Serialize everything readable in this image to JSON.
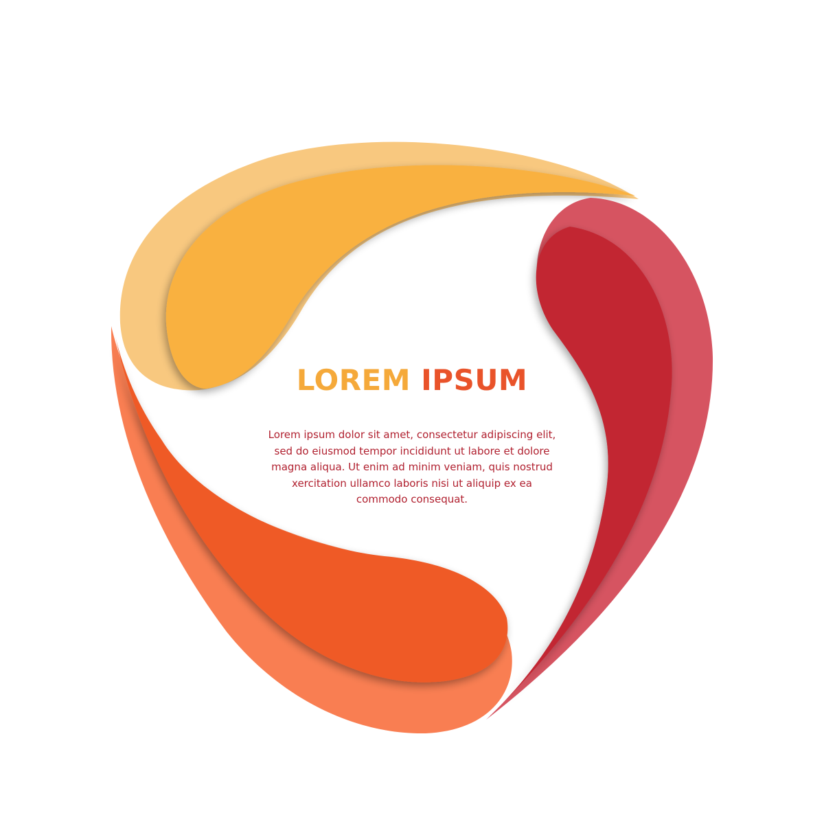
{
  "headline": {
    "word_1": "LOREM",
    "word_2": "IPSUM"
  },
  "body": {
    "lines": [
      "Lorem ipsum dolor sit amet, consectetur adipiscing elit,",
      "sed do eiusmod tempor incididunt ut labore et dolore",
      "magna aliqua. Ut enim ad minim veniam, quis nostrud",
      "xercitation ullamco laboris nisi ut aliquip ex ea",
      "commodo consequat."
    ]
  },
  "colors": {
    "yellow_outer": "#f8c87f",
    "yellow_inner": "#f9b13f",
    "red_outer": "#d65461",
    "red_inner": "#c22532",
    "orange_outer": "#f97e52",
    "orange_inner": "#ef5a27",
    "headline_word_1": "#f5a93a",
    "headline_word_2": "#e9532a",
    "body_text": "#b01f2e"
  }
}
